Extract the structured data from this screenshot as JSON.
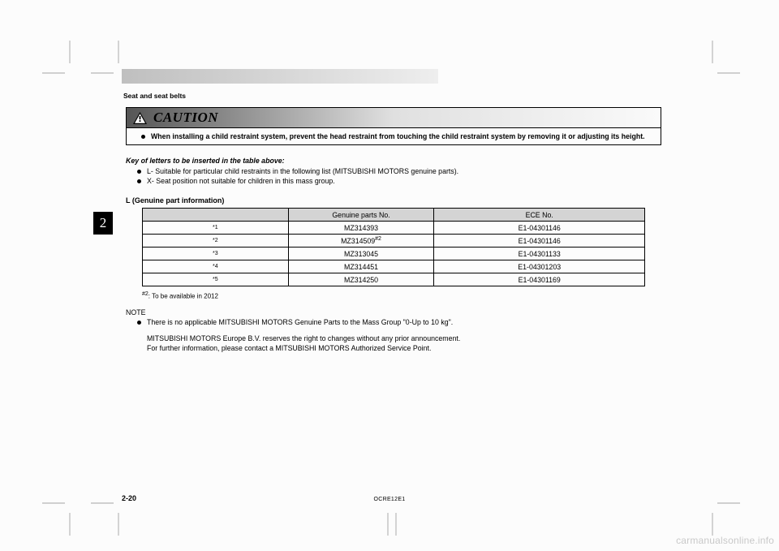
{
  "section": "Seat and seat belts",
  "caution": {
    "title": "CAUTION",
    "text": "When installing a child restraint system, prevent the head restraint from touching the child restraint system by removing it or adjusting its height."
  },
  "key": {
    "title": "Key of letters to be inserted in the table above:",
    "items": [
      "L- Suitable for particular child restraints in the following list (MITSUBISHI MOTORS genuine parts).",
      "X- Seat position not suitable for children in this mass group."
    ]
  },
  "tab": "2",
  "parts_label": "L (Genuine part information)",
  "table": {
    "headers": [
      "",
      "Genuine parts No.",
      "ECE No."
    ],
    "rows": [
      {
        "idx": "*1",
        "part": "MZ314393",
        "ece": "E1-04301146",
        "sup": ""
      },
      {
        "idx": "*2",
        "part": "MZ314509",
        "ece": "E1-04301146",
        "sup": "#2"
      },
      {
        "idx": "*3",
        "part": "MZ313045",
        "ece": "E1-04301133",
        "sup": ""
      },
      {
        "idx": "*4",
        "part": "MZ314451",
        "ece": "E1-04301203",
        "sup": ""
      },
      {
        "idx": "*5",
        "part": "MZ314250",
        "ece": "E1-04301169",
        "sup": ""
      }
    ],
    "colors": {
      "header_bg": "#d4d4d4",
      "border": "#000000",
      "bg": "#fcfcfc"
    }
  },
  "footnote": ": To be available in 2012",
  "footnote_sup": "#2",
  "note": {
    "title": "NOTE",
    "bullet": "There is no applicable MITSUBISHI MOTORS Genuine Parts to the Mass Group \"0-Up to 10 kg\".",
    "lines": [
      "MITSUBISHI MOTORS Europe B.V. reserves the right to changes without any prior announcement.",
      "For further information, please contact a MITSUBISHI MOTORS Authorized Service Point."
    ]
  },
  "page_number": "2-20",
  "doc_code": "OCRE12E1",
  "watermark": "carmanualsonline.info"
}
